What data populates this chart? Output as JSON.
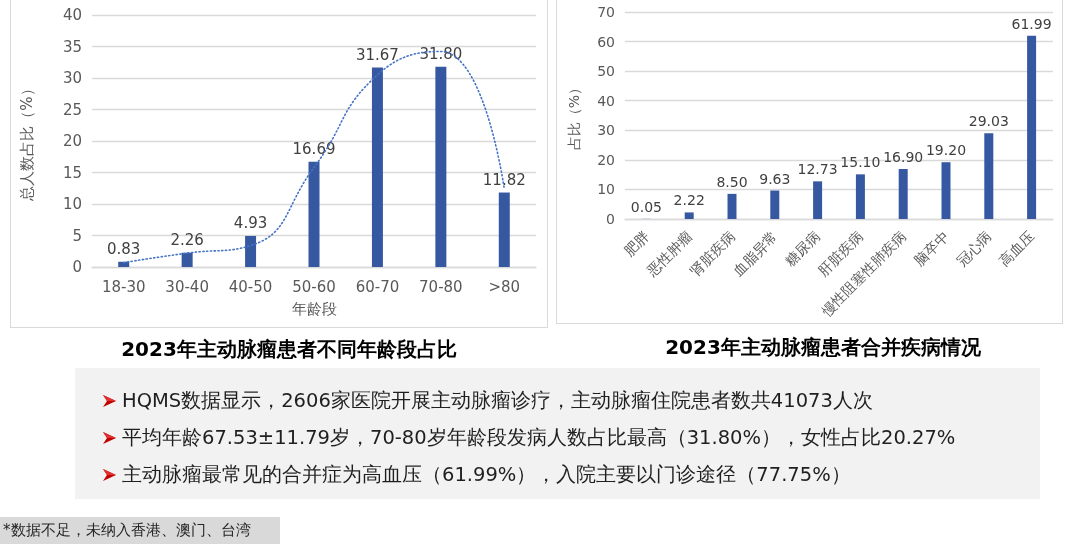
{
  "chart_data": [
    {
      "type": "bar",
      "title": "2023年主动脉瘤患者不同年龄段占比",
      "xlabel": "年龄段",
      "ylabel": "总人数占比（%）",
      "categories": [
        "18-30",
        "30-40",
        "40-50",
        "50-60",
        "60-70",
        "70-80",
        ">80"
      ],
      "series": [
        {
          "type": "bar",
          "color": "#3558a0",
          "values": [
            0.83,
            2.26,
            4.93,
            16.69,
            31.67,
            31.8,
            11.82
          ],
          "value_labels": [
            "0.83",
            "2.26",
            "4.93",
            "16.69",
            "31.67",
            "31.80",
            "11.82"
          ]
        },
        {
          "type": "line",
          "color": "#4472c4",
          "line_style": "dotted",
          "marker": "none",
          "values": [
            0.7,
            2.2,
            3.4,
            15.8,
            30.5,
            34.2,
            12.4
          ]
        }
      ],
      "ylim": [
        0,
        40
      ],
      "yticks": [
        0,
        5,
        10,
        15,
        20,
        25,
        30,
        35,
        40
      ],
      "grid": "y"
    },
    {
      "type": "bar",
      "title": "2023年主动脉瘤患者合并疾病情况",
      "ylabel": "占比（%）",
      "categories": [
        "肥胖",
        "恶性肿瘤",
        "肾脏疾病",
        "血脂异常",
        "糖尿病",
        "肝脏疾病",
        "慢性阻塞性肺疾病",
        "脑卒中",
        "冠心病",
        "高血压"
      ],
      "values": [
        0.05,
        2.22,
        8.5,
        9.63,
        12.73,
        15.1,
        16.9,
        19.2,
        29.03,
        61.99
      ],
      "value_labels": [
        "0.05",
        "2.22",
        "8.50",
        "9.63",
        "12.73",
        "15.10",
        "16.90",
        "19.20",
        "29.03",
        "61.99"
      ],
      "color": "#3558a0",
      "ylim": [
        0,
        70
      ],
      "yticks": [
        0,
        10,
        20,
        30,
        40,
        50,
        60,
        70
      ],
      "grid": "y"
    },
    {
      "type": "other",
      "annotations": [
        "HQMS数据显示，2606家医院开展主动脉瘤诊疗，主动脉瘤住院患者数共41073人次",
        "平均年龄67.53±11.79岁，70-80岁年龄段发病人数占比最高（31.80%），女性占比20.27%",
        "主动脉瘤最常见的合并症为高血压（61.99%），入院主要以门诊途径（77.75%）",
        "*数据不足，未纳入香港、澳门、台湾"
      ]
    }
  ]
}
